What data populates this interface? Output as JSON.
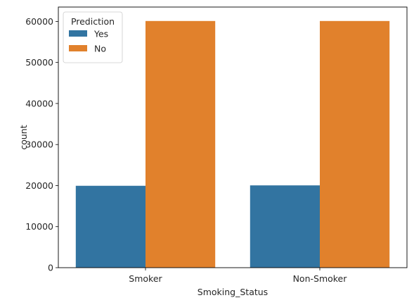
{
  "chart_data": {
    "type": "bar",
    "xlabel": "Smoking_Status",
    "ylabel": "count",
    "categories": [
      "Smoker",
      "Non-Smoker"
    ],
    "series": [
      {
        "name": "Yes",
        "values": [
          19950,
          20050
        ],
        "color": "#3274a1"
      },
      {
        "name": "No",
        "values": [
          60100,
          60100
        ],
        "color": "#e1812c"
      }
    ],
    "ylim": [
      0,
      63500
    ],
    "yticks": [
      0,
      10000,
      20000,
      30000,
      40000,
      50000,
      60000
    ],
    "ytick_labels": [
      "0",
      "10000",
      "20000",
      "30000",
      "40000",
      "50000",
      "60000"
    ],
    "legend": {
      "title": "Prediction",
      "placement": "top-left"
    },
    "grid": false
  }
}
